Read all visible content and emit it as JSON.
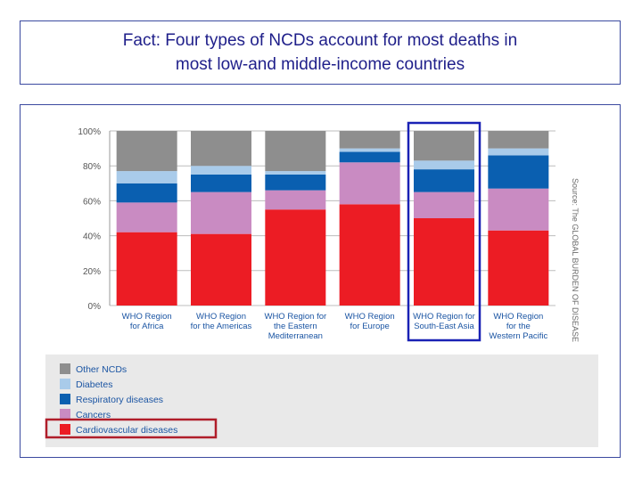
{
  "title": {
    "line1": "Fact:  Four types of NCDs account for most deaths in",
    "line2": "most low-and middle-income countries"
  },
  "source": "Source: The GLOBAL BURDEN OF DISEASE",
  "colors": {
    "Other NCDs": "#8e8e8e",
    "Diabetes": "#a9cbea",
    "Respiratory diseases": "#0a5fb0",
    "Cancers": "#c98bc2",
    "Cardiovascular diseases": "#ec1c24",
    "highlight_column": "#1a22b5",
    "highlight_legend": "#b01e2a"
  },
  "highlight": {
    "column": "WHO Region for South-East Asia",
    "legend": "Cardiovascular diseases"
  },
  "chart_data": {
    "type": "bar",
    "stacked": true,
    "categories": [
      [
        "WHO Region",
        "for Africa"
      ],
      [
        "WHO Region",
        "for the Americas"
      ],
      [
        "WHO Region for",
        "the Eastern",
        "Mediterranean"
      ],
      [
        "WHO Region",
        "for Europe"
      ],
      [
        "WHO Region for",
        "South-East Asia"
      ],
      [
        "WHO Region",
        "for the",
        "Western Pacific"
      ]
    ],
    "series": [
      {
        "name": "Cardiovascular diseases",
        "values": [
          42,
          41,
          55,
          58,
          50,
          43
        ]
      },
      {
        "name": "Cancers",
        "values": [
          17,
          24,
          11,
          24,
          15,
          24
        ]
      },
      {
        "name": "Respiratory diseases",
        "values": [
          11,
          10,
          9,
          6,
          13,
          19
        ]
      },
      {
        "name": "Diabetes",
        "values": [
          7,
          5,
          2,
          2,
          5,
          4
        ]
      },
      {
        "name": "Other NCDs",
        "values": [
          23,
          20,
          23,
          10,
          17,
          10
        ]
      }
    ],
    "ylim": [
      0,
      100
    ],
    "yticks": [
      "0%",
      "20%",
      "40%",
      "60%",
      "80%",
      "100%"
    ],
    "legend_order": [
      "Other NCDs",
      "Diabetes",
      "Respiratory diseases",
      "Cancers",
      "Cardiovascular diseases"
    ],
    "legend_placement": "bottom-left",
    "grid": true
  }
}
